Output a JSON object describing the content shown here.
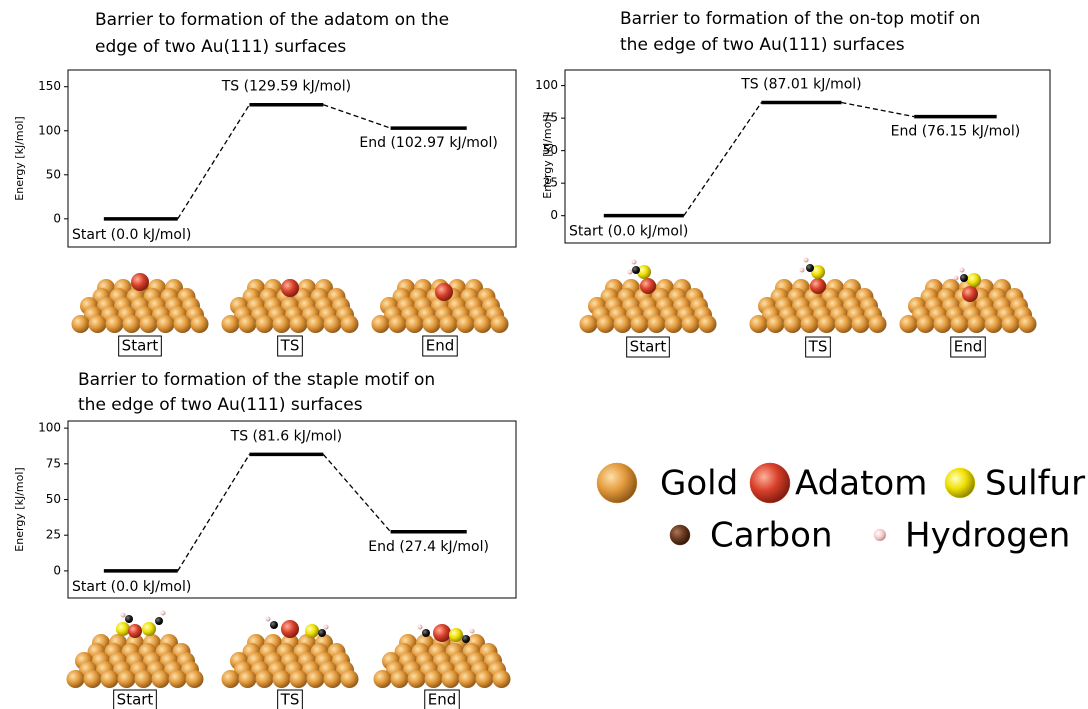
{
  "chart_data": [
    {
      "type": "energy",
      "title": [
        "Barrier to formation of the adatom on the",
        "edge of two Au(111) surfaces"
      ],
      "ylabel": "Energy [kJ/mol]",
      "values": [
        0,
        129.59,
        102.97
      ],
      "value_labels": [
        "Start (0.0 kJ/mol)",
        "TS (129.59 kJ/mol)",
        "End (102.97 kJ/mol)"
      ],
      "ylim": [
        -32,
        169
      ],
      "yticks": [
        0,
        50,
        100,
        150
      ],
      "color": "#000000",
      "structure_labels": [
        "Start",
        "TS",
        "End"
      ]
    },
    {
      "type": "energy",
      "title": [
        "Barrier to formation of the on-top motif on",
        "the edge of two Au(111) surfaces"
      ],
      "ylabel": "Energy [kJ/mol]",
      "values": [
        0,
        87.01,
        76.15
      ],
      "value_labels": [
        "Start (0.0 kJ/mol)",
        "TS (87.01 kJ/mol)",
        "End (76.15 kJ/mol)"
      ],
      "ylim": [
        -21,
        112
      ],
      "yticks": [
        0,
        25,
        50,
        75,
        100
      ],
      "color": "#000000",
      "structure_labels": [
        "Start",
        "TS",
        "End"
      ]
    },
    {
      "type": "energy",
      "title": [
        "Barrier to formation of the staple motif on",
        "the edge of two Au(111) surfaces"
      ],
      "ylabel": "Energy [kJ/mol]",
      "values": [
        0,
        81.6,
        27.4
      ],
      "value_labels": [
        "Start (0.0 kJ/mol)",
        "TS (81.6 kJ/mol)",
        "End (27.4 kJ/mol)"
      ],
      "ylim": [
        -19,
        105
      ],
      "yticks": [
        0,
        25,
        50,
        75,
        100
      ],
      "color": "#000000",
      "structure_labels": [
        "Start",
        "TS",
        "End"
      ]
    }
  ],
  "legend": [
    {
      "name": "Gold",
      "color": "#e39a3c"
    },
    {
      "name": "Adatom",
      "color": "#d8402a"
    },
    {
      "name": "Sulfur",
      "color": "#f0e000"
    },
    {
      "name": "Carbon",
      "color": "#6b3a1e"
    },
    {
      "name": "Hydrogen",
      "color": "#f2c8c8"
    }
  ]
}
